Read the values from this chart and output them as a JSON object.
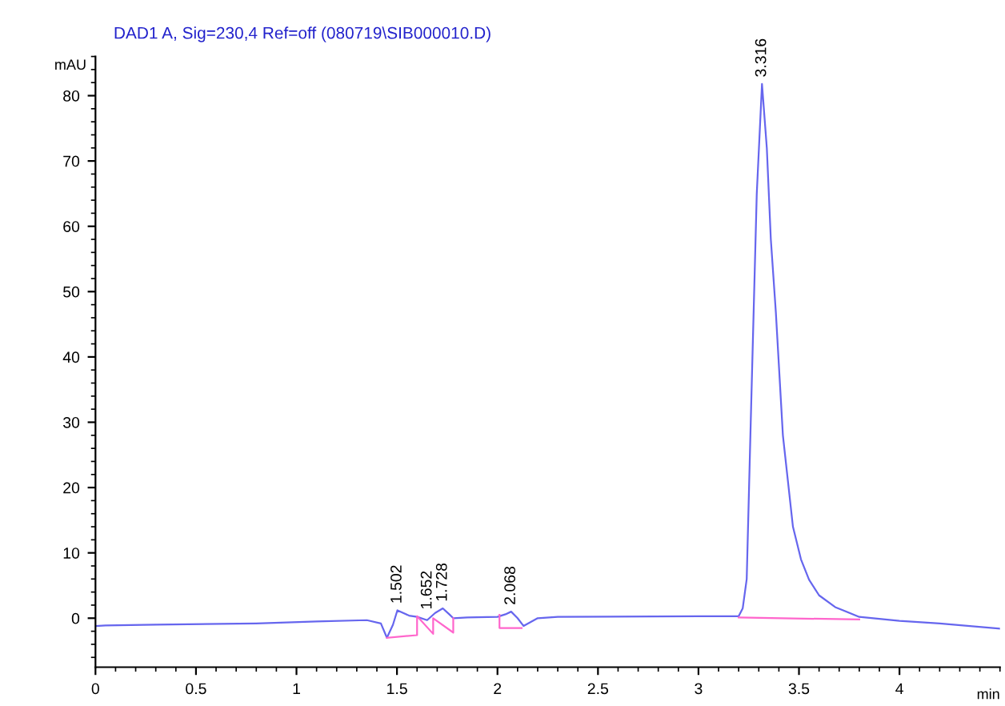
{
  "chart_data": {
    "type": "line",
    "title": "DAD1 A, Sig=230,4 Ref=off (080719\\SIB000010.D)",
    "ylabel": "mAU",
    "xlabel": "min",
    "xlim": [
      0,
      4.5
    ],
    "xticks": [
      0,
      0.5,
      1,
      1.5,
      2,
      2.5,
      3,
      3.5,
      4
    ],
    "ylim": [
      -7.5,
      86
    ],
    "yticks": [
      0,
      10,
      20,
      30,
      40,
      50,
      60,
      70,
      80
    ],
    "grid": false,
    "legend": false,
    "series": [
      {
        "color": "#6666ee",
        "x": [
          0,
          0.05,
          0.3,
          0.8,
          1.1,
          1.35,
          1.42,
          1.45,
          1.48,
          1.502,
          1.56,
          1.6,
          1.65,
          1.69,
          1.728,
          1.76,
          1.78,
          1.85,
          2.0,
          2.04,
          2.068,
          2.1,
          2.13,
          2.2,
          2.3,
          3.0,
          3.2,
          3.22,
          3.24,
          3.26,
          3.29,
          3.316,
          3.34,
          3.36,
          3.385,
          3.42,
          3.47,
          3.51,
          3.55,
          3.6,
          3.68,
          3.8,
          4.0,
          4.2,
          4.5
        ],
        "values": [
          -1.2,
          -1.1,
          -1.0,
          -0.8,
          -0.5,
          -0.3,
          -0.8,
          -3.0,
          -1.0,
          1.2,
          0.4,
          0.2,
          -0.3,
          0.8,
          1.5,
          0.6,
          0.0,
          0.1,
          0.2,
          0.6,
          1.0,
          0.0,
          -1.2,
          0.0,
          0.2,
          0.3,
          0.3,
          1.5,
          6,
          30,
          65,
          81.8,
          72,
          58,
          46.8,
          28,
          14,
          9,
          5.9,
          3.5,
          1.7,
          0.2,
          -0.4,
          -0.8,
          -1.6
        ]
      },
      {
        "color": "#ff66cc",
        "x": [
          1.45,
          1.6,
          1.6,
          1.68,
          1.68,
          1.78,
          1.78
        ],
        "values": [
          -3.0,
          -2.6,
          0.3,
          -2.4,
          0.0,
          -2.2,
          0.0
        ]
      },
      {
        "color": "#ff66cc",
        "x": [
          2.01,
          2.01,
          2.12
        ],
        "values": [
          0.5,
          -1.5,
          -1.5
        ]
      },
      {
        "color": "#ff66cc",
        "x": [
          3.2,
          3.8
        ],
        "values": [
          0.1,
          -0.2
        ]
      }
    ],
    "annotations": [
      {
        "text": "1.502",
        "x": 1.502,
        "y": 1.2
      },
      {
        "text": "1.652",
        "x": 1.652,
        "y": 0.3
      },
      {
        "text": "1.728",
        "x": 1.728,
        "y": 1.5
      },
      {
        "text": "2.068",
        "x": 2.068,
        "y": 1.0
      },
      {
        "text": "3.316",
        "x": 3.316,
        "y": 81.8
      }
    ]
  }
}
